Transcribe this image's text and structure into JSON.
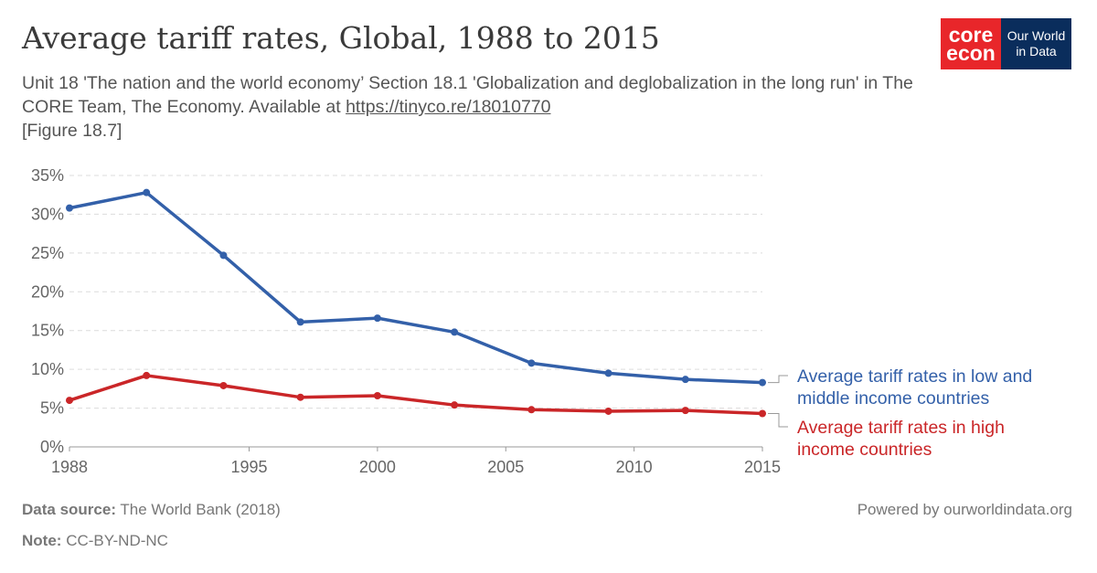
{
  "header": {
    "title": "Average tariff rates, Global, 1988 to 2015",
    "subtitle_text": "Unit 18 'The nation and the world economy’ Section 18.1 'Globalization and deglobalization in the long run' in The CORE Team, The Economy. Available at ",
    "subtitle_link": "https://tinyco.re/18010770",
    "subtitle_end": "[Figure 18.7]"
  },
  "logos": {
    "core_line1": "core",
    "core_line2": "econ",
    "owid_line1": "Our World",
    "owid_line2": "in Data",
    "core_color": "#e8262a",
    "owid_color": "#0a2d5c"
  },
  "footer": {
    "source_label": "Data source:",
    "source_value": "The World Bank (2018)",
    "note_label": "Note:",
    "note_value": "CC-BY-ND-NC",
    "powered": "Powered by ourworldindata.org"
  },
  "chart_data": {
    "type": "line",
    "title": "Average tariff rates, Global, 1988 to 2015",
    "xlabel": "",
    "ylabel": "",
    "xlim": [
      1988,
      2015
    ],
    "ylim": [
      0,
      35
    ],
    "x_ticks": [
      "1988",
      "1995",
      "2000",
      "2005",
      "2010",
      "2015"
    ],
    "y_ticks": [
      "0%",
      "5%",
      "10%",
      "15%",
      "20%",
      "25%",
      "30%",
      "35%"
    ],
    "grid": true,
    "legend_placement": "right",
    "x": [
      1988,
      1991,
      1994,
      1997,
      2000,
      2003,
      2006,
      2009,
      2012,
      2015
    ],
    "series": [
      {
        "name": "Average tariff rates in low and middle income countries",
        "label_lines": [
          "Average tariff rates in low and",
          "middle income countries"
        ],
        "color": "#3360a9",
        "values": [
          30.8,
          32.8,
          24.7,
          16.1,
          16.6,
          14.8,
          10.8,
          9.5,
          8.7,
          8.3
        ]
      },
      {
        "name": "Average tariff rates in high income countries",
        "label_lines": [
          "Average tariff rates in high",
          "income countries"
        ],
        "color": "#ca2628",
        "values": [
          6.0,
          9.2,
          7.9,
          6.4,
          6.6,
          5.4,
          4.8,
          4.6,
          4.7,
          4.3
        ]
      }
    ]
  }
}
